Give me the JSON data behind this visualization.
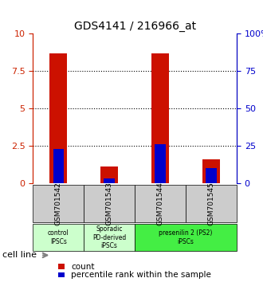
{
  "title": "GDS4141 / 216966_at",
  "samples": [
    "GSM701542",
    "GSM701543",
    "GSM701544",
    "GSM701545"
  ],
  "red_values": [
    8.7,
    1.1,
    8.7,
    1.6
  ],
  "blue_values": [
    2.3,
    0.3,
    2.6,
    1.0
  ],
  "ylim": [
    0,
    10
  ],
  "yticks": [
    0,
    2.5,
    5,
    7.5,
    10
  ],
  "ytick_labels_left": [
    "0",
    "2.5",
    "5",
    "7.5",
    "10"
  ],
  "ytick_labels_right": [
    "0",
    "25",
    "50",
    "75",
    "100%"
  ],
  "left_axis_color": "#cc2200",
  "right_axis_color": "#0000cc",
  "bar_width": 0.35,
  "red_color": "#cc1100",
  "blue_color": "#0000cc",
  "groups": [
    {
      "label": "control\nIPSCs",
      "span": [
        0,
        1
      ],
      "color": "#ccffcc"
    },
    {
      "label": "Sporadic\nPD-derived\niPSCs",
      "span": [
        1,
        2
      ],
      "color": "#ccffcc"
    },
    {
      "label": "presenilin 2 (PS2)\niPSCs",
      "span": [
        2,
        4
      ],
      "color": "#44ee44"
    }
  ],
  "group_bg_colors": [
    "#dddddd",
    "#dddddd",
    "#44ee44"
  ],
  "legend_red_label": "count",
  "legend_blue_label": "percentile rank within the sample",
  "cell_line_label": "cell line"
}
